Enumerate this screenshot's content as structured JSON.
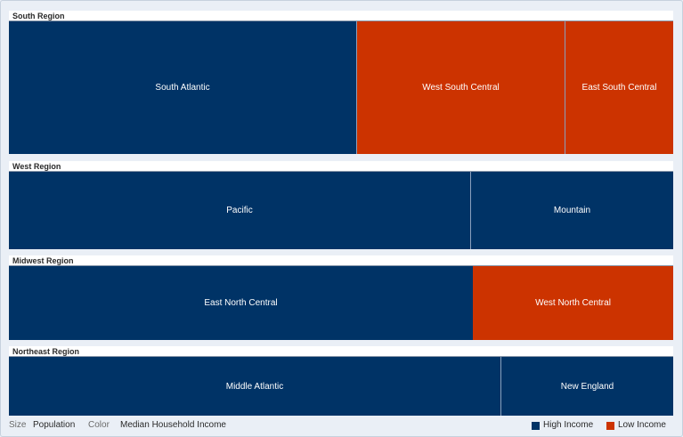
{
  "chart_data": {
    "type": "treemap",
    "size_measure": "Population",
    "color_measure": "Median Household Income",
    "colors": {
      "High Income": "#003366",
      "Low Income": "#cc3300"
    },
    "regions": [
      {
        "name": "South Region",
        "items": [
          {
            "label": "South Atlantic",
            "color_class": "High Income"
          },
          {
            "label": "West South Central",
            "color_class": "Low Income"
          },
          {
            "label": "East South Central",
            "color_class": "Low Income"
          }
        ]
      },
      {
        "name": "West Region",
        "items": [
          {
            "label": "Pacific",
            "color_class": "High Income"
          },
          {
            "label": "Mountain",
            "color_class": "High Income"
          }
        ]
      },
      {
        "name": "Midwest Region",
        "items": [
          {
            "label": "East North Central",
            "color_class": "High Income"
          },
          {
            "label": "West North Central",
            "color_class": "Low Income"
          }
        ]
      },
      {
        "name": "Northeast Region",
        "items": [
          {
            "label": "Middle Atlantic",
            "color_class": "High Income"
          },
          {
            "label": "New England",
            "color_class": "High Income"
          }
        ]
      }
    ]
  },
  "footer": {
    "size_label": "Size",
    "size_value": "Population",
    "color_label": "Color",
    "color_value": "Median Household Income",
    "legend": [
      {
        "label": "High Income",
        "color": "#003366"
      },
      {
        "label": "Low Income",
        "color": "#cc3300"
      }
    ]
  }
}
